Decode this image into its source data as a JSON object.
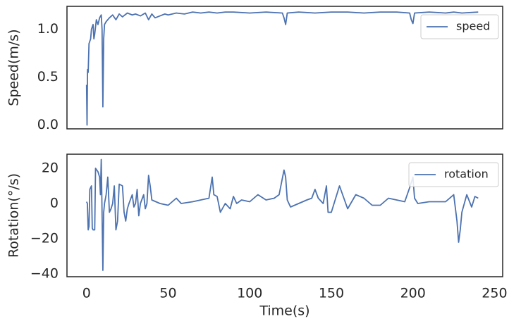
{
  "chart_data": [
    {
      "type": "line",
      "ylabel": "Speed(m/s)",
      "xlim": [
        -12,
        255
      ],
      "ylim": [
        -0.04,
        1.24
      ],
      "yticks": [
        {
          "value": 0,
          "label": "0.0"
        },
        {
          "value": 0.5,
          "label": "0.5"
        },
        {
          "value": 1,
          "label": "1.0"
        }
      ],
      "grid": false,
      "legend": "upper right",
      "x": [
        0,
        0.3,
        0.6,
        1,
        1.5,
        2.5,
        3,
        4,
        4.5,
        5,
        6,
        7,
        8,
        9,
        9.5,
        10,
        10.5,
        11,
        12,
        14,
        16,
        18,
        20,
        22,
        25,
        28,
        30,
        33,
        36,
        38,
        40,
        42,
        45,
        48,
        50,
        55,
        60,
        65,
        70,
        75,
        80,
        85,
        90,
        100,
        110,
        120,
        121,
        122,
        123,
        130,
        140,
        150,
        160,
        170,
        180,
        190,
        198,
        199,
        200,
        201,
        210,
        220,
        225,
        230,
        240
      ],
      "series": [
        {
          "name": "speed",
          "color": "#4c72b0",
          "values": [
            0.42,
            0.0,
            0.58,
            0.55,
            0.85,
            0.9,
            1.0,
            1.05,
            0.9,
            0.95,
            1.1,
            1.05,
            1.12,
            1.15,
            1.0,
            0.19,
            0.9,
            1.05,
            1.08,
            1.12,
            1.15,
            1.1,
            1.16,
            1.13,
            1.17,
            1.15,
            1.16,
            1.14,
            1.17,
            1.1,
            1.16,
            1.12,
            1.14,
            1.16,
            1.15,
            1.17,
            1.16,
            1.18,
            1.17,
            1.18,
            1.17,
            1.18,
            1.18,
            1.17,
            1.18,
            1.17,
            1.12,
            1.05,
            1.17,
            1.18,
            1.17,
            1.18,
            1.18,
            1.17,
            1.18,
            1.18,
            1.17,
            1.1,
            1.06,
            1.17,
            1.18,
            1.17,
            1.18,
            1.17,
            1.18
          ]
        }
      ]
    },
    {
      "type": "line",
      "ylabel": "Rotation(°/s)",
      "xlabel": "Time(s)",
      "xlim": [
        -12,
        255
      ],
      "ylim": [
        -41.6,
        28
      ],
      "xticks": [
        0,
        50,
        100,
        150,
        200,
        250
      ],
      "yticks": [
        {
          "value": -40,
          "label": "−40"
        },
        {
          "value": -20,
          "label": "−20"
        },
        0,
        20
      ],
      "grid": false,
      "legend": "upper right",
      "x": [
        0,
        0.5,
        1,
        1.5,
        2,
        3,
        3.5,
        4,
        5,
        5.5,
        7,
        8,
        8.5,
        9,
        9.5,
        10,
        10.5,
        11,
        12,
        13,
        14,
        15,
        16,
        17,
        18,
        19,
        20,
        22,
        23,
        24,
        25,
        26,
        28,
        29,
        30,
        31,
        32,
        33,
        35,
        36,
        37,
        38,
        39,
        40,
        45,
        50,
        55,
        58,
        65,
        70,
        75,
        77,
        78,
        80,
        82,
        85,
        88,
        90,
        92,
        95,
        100,
        105,
        110,
        115,
        118,
        121,
        122,
        123,
        125,
        130,
        135,
        138,
        140,
        142,
        145,
        147,
        148,
        150,
        155,
        160,
        165,
        170,
        175,
        180,
        185,
        190,
        195,
        198,
        200,
        201,
        203,
        210,
        220,
        225,
        227,
        228,
        229,
        230,
        233,
        236,
        238,
        240
      ],
      "series": [
        {
          "name": "rotation",
          "color": "#4c72b0",
          "values": [
            1,
            0,
            -15,
            -13,
            8,
            10,
            -14,
            -15,
            -15,
            20,
            18,
            15,
            5,
            25,
            -5,
            -38,
            -5,
            0,
            5,
            15,
            -5,
            -3,
            0,
            10,
            -15,
            -10,
            11,
            10,
            -5,
            -10,
            -3,
            0,
            5,
            -2,
            0,
            8,
            -7,
            0,
            5,
            -3,
            0,
            16,
            10,
            2,
            0,
            -1,
            3,
            0,
            1,
            2,
            3,
            15,
            5,
            4,
            -5,
            0,
            -3,
            4,
            0,
            2,
            1,
            5,
            2,
            3,
            5,
            19,
            15,
            2,
            -2,
            0,
            2,
            3,
            8,
            3,
            0,
            10,
            -5,
            -5,
            10,
            -3,
            5,
            3,
            -1,
            -1,
            3,
            2,
            1,
            9,
            15,
            3,
            0,
            1,
            1,
            5,
            -10,
            -22,
            -15,
            -5,
            5,
            -2,
            4,
            3
          ]
        }
      ]
    }
  ]
}
